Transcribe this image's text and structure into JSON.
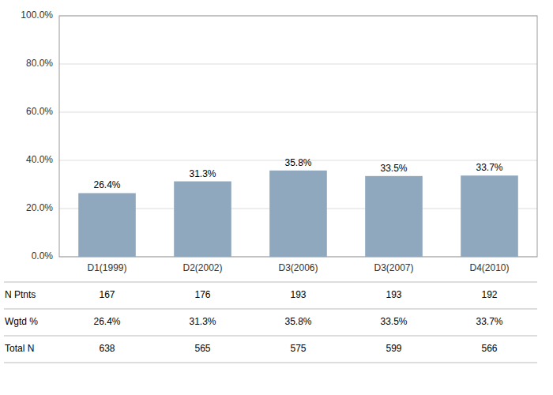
{
  "chart_data": {
    "type": "bar",
    "categories": [
      "D1(1999)",
      "D2(2002)",
      "D3(2006)",
      "D3(2007)",
      "D4(2010)"
    ],
    "values": [
      26.4,
      31.3,
      35.8,
      33.5,
      33.7
    ],
    "value_labels": [
      "26.4%",
      "31.3%",
      "35.8%",
      "33.5%",
      "33.7%"
    ],
    "data_labels": true,
    "color": "#8fa8be",
    "ylim": [
      0,
      100
    ],
    "yticks": [
      {
        "value": 0,
        "label": "0.0%"
      },
      {
        "value": 20,
        "label": "20.0%"
      },
      {
        "value": 40,
        "label": "40.0%"
      },
      {
        "value": 60,
        "label": "60.0%"
      },
      {
        "value": 80,
        "label": "80.0%"
      },
      {
        "value": 100,
        "label": "100.0%"
      }
    ],
    "grid": true,
    "table": [
      {
        "name": "N Ptnts",
        "values": [
          167,
          176,
          193,
          193,
          192
        ]
      },
      {
        "name": "Wgtd %",
        "values": [
          26.4,
          31.3,
          35.8,
          33.5,
          33.7
        ],
        "value_labels": [
          "26.4%",
          "31.3%",
          "35.8%",
          "33.5%",
          "33.7%"
        ]
      },
      {
        "name": "Total N",
        "values": [
          638,
          565,
          575,
          599,
          566
        ]
      }
    ]
  }
}
